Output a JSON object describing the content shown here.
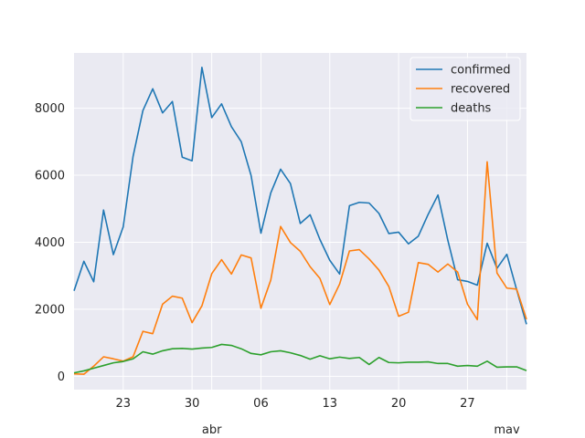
{
  "chart_data": {
    "type": "line",
    "x": [
      "2020-03-18",
      "2020-03-19",
      "2020-03-20",
      "2020-03-21",
      "2020-03-22",
      "2020-03-23",
      "2020-03-24",
      "2020-03-25",
      "2020-03-26",
      "2020-03-27",
      "2020-03-28",
      "2020-03-29",
      "2020-03-30",
      "2020-03-31",
      "2020-04-01",
      "2020-04-02",
      "2020-04-03",
      "2020-04-04",
      "2020-04-05",
      "2020-04-06",
      "2020-04-07",
      "2020-04-08",
      "2020-04-09",
      "2020-04-10",
      "2020-04-11",
      "2020-04-12",
      "2020-04-13",
      "2020-04-14",
      "2020-04-15",
      "2020-04-16",
      "2020-04-17",
      "2020-04-18",
      "2020-04-19",
      "2020-04-20",
      "2020-04-21",
      "2020-04-22",
      "2020-04-23",
      "2020-04-24",
      "2020-04-25",
      "2020-04-26",
      "2020-04-27",
      "2020-04-28",
      "2020-04-29",
      "2020-04-30",
      "2020-05-01",
      "2020-05-02",
      "2020-05-03"
    ],
    "series": [
      {
        "name": "confirmed",
        "color": "#1f77b4",
        "values": [
          2550,
          3430,
          2820,
          4960,
          3630,
          4460,
          6560,
          7930,
          8580,
          7860,
          8200,
          6540,
          6430,
          9220,
          7720,
          8130,
          7450,
          7000,
          5990,
          4270,
          5470,
          6180,
          5750,
          4560,
          4820,
          4080,
          3460,
          3050,
          5090,
          5190,
          5170,
          4860,
          4260,
          4300,
          3950,
          4180,
          4830,
          5410,
          4060,
          2880,
          2830,
          2720,
          3970,
          3220,
          3640,
          2580,
          1550
        ]
      },
      {
        "name": "recovered",
        "color": "#ff7f0e",
        "values": [
          70,
          60,
          300,
          580,
          520,
          450,
          580,
          1340,
          1270,
          2150,
          2390,
          2330,
          1600,
          2100,
          3060,
          3480,
          3050,
          3620,
          3530,
          2030,
          2870,
          4470,
          3990,
          3730,
          3270,
          2920,
          2140,
          2750,
          3740,
          3780,
          3500,
          3170,
          2680,
          1790,
          1910,
          3390,
          3340,
          3110,
          3350,
          3110,
          2150,
          1690,
          6400,
          3080,
          2630,
          2600,
          1700
        ]
      },
      {
        "name": "deaths",
        "color": "#2ca02c",
        "values": [
          100,
          160,
          240,
          320,
          400,
          440,
          520,
          730,
          660,
          760,
          820,
          830,
          810,
          840,
          860,
          950,
          920,
          820,
          680,
          640,
          730,
          760,
          700,
          620,
          510,
          610,
          520,
          570,
          530,
          560,
          350,
          560,
          410,
          400,
          420,
          420,
          430,
          380,
          380,
          300,
          320,
          300,
          450,
          270,
          280,
          280,
          170
        ]
      }
    ],
    "x_tick_labels": [
      "23",
      "30",
      "06",
      "13",
      "20",
      "27"
    ],
    "x_month_labels": [
      "abr",
      "mav"
    ],
    "y_tick_labels": [
      "0",
      "2000",
      "4000",
      "6000",
      "8000"
    ],
    "ylim": [
      -400,
      9650
    ],
    "xlim": [
      "2020-03-18",
      "2020-05-03"
    ],
    "grid": true,
    "legend_position": "top-right"
  }
}
